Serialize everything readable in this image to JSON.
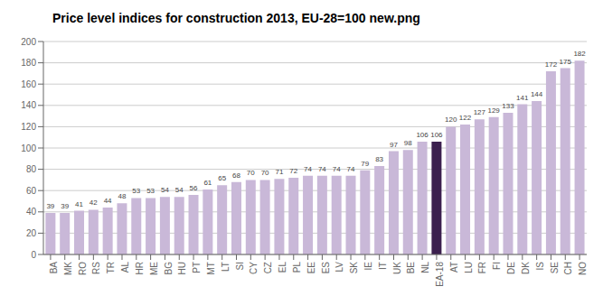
{
  "chart_data": {
    "type": "bar",
    "title": "Price level indices for construction 2013, EU-28=100 new.png",
    "categories": [
      "BA",
      "MK",
      "RO",
      "RS",
      "TR",
      "AL",
      "HR",
      "ME",
      "BG",
      "HU",
      "PT",
      "MT",
      "LT",
      "SI",
      "CY",
      "CZ",
      "EL",
      "PL",
      "EE",
      "ES",
      "LV",
      "SK",
      "IE",
      "IT",
      "UK",
      "BE",
      "NL",
      "EA-18",
      "AT",
      "LU",
      "FR",
      "FI",
      "DE",
      "DK",
      "IS",
      "SE",
      "CH",
      "NO"
    ],
    "values": [
      39,
      39,
      41,
      42,
      44,
      48,
      53,
      53,
      54,
      54,
      56,
      61,
      65,
      68,
      70,
      70,
      71,
      72,
      74,
      74,
      74,
      74,
      79,
      83,
      97,
      98,
      106,
      106,
      120,
      122,
      127,
      129,
      133,
      141,
      144,
      172,
      175,
      182
    ],
    "colors": [
      "#c9b8d8",
      "#c9b8d8",
      "#c9b8d8",
      "#c9b8d8",
      "#c9b8d8",
      "#c9b8d8",
      "#c9b8d8",
      "#c9b8d8",
      "#c9b8d8",
      "#c9b8d8",
      "#c9b8d8",
      "#c9b8d8",
      "#c9b8d8",
      "#c9b8d8",
      "#c9b8d8",
      "#c9b8d8",
      "#c9b8d8",
      "#c9b8d8",
      "#c9b8d8",
      "#c9b8d8",
      "#c9b8d8",
      "#c9b8d8",
      "#c9b8d8",
      "#c9b8d8",
      "#c9b8d8",
      "#c9b8d8",
      "#c9b8d8",
      "#3b1f4e",
      "#c9b8d8",
      "#c9b8d8",
      "#c9b8d8",
      "#c9b8d8",
      "#c9b8d8",
      "#c9b8d8",
      "#c9b8d8",
      "#c9b8d8",
      "#c9b8d8",
      "#c9b8d8"
    ],
    "ylim": [
      0,
      200
    ],
    "yticks": [
      0,
      20,
      40,
      60,
      80,
      100,
      120,
      140,
      160,
      180,
      200
    ],
    "grid": true,
    "data_labels": true
  }
}
